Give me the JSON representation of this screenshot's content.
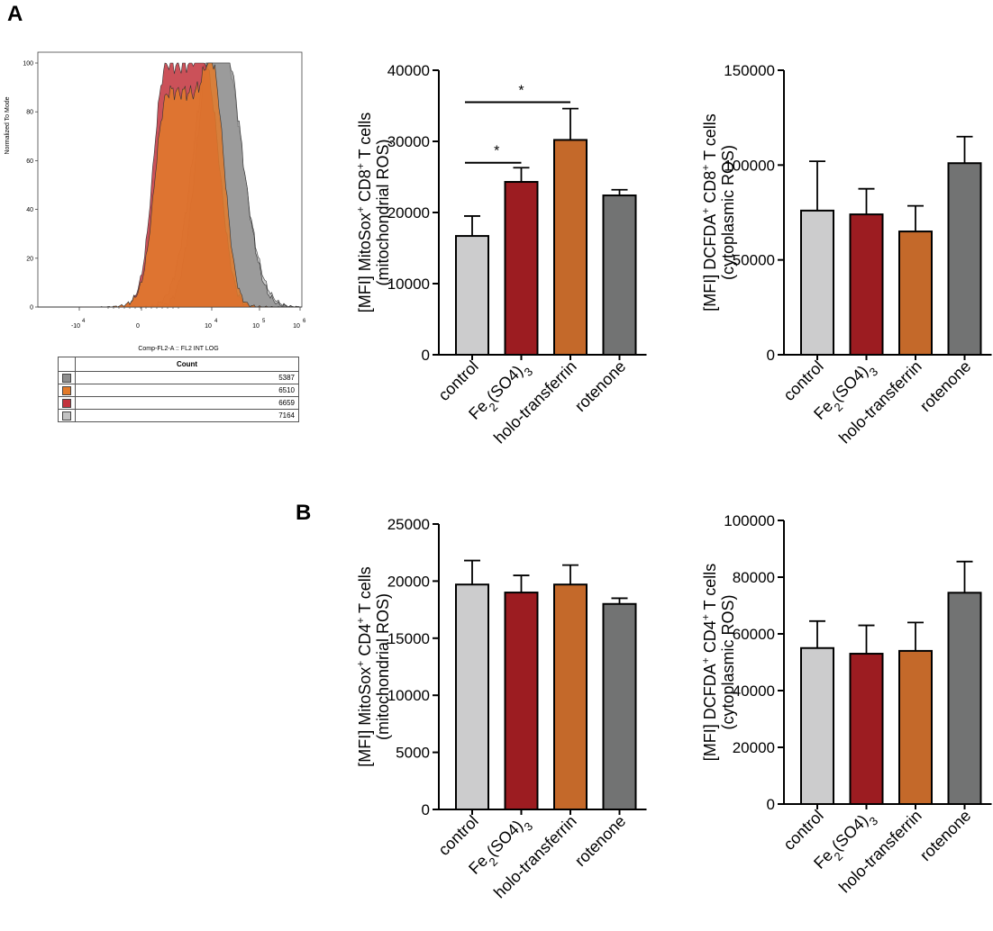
{
  "panels": {
    "a": "A",
    "b": "B"
  },
  "colors": {
    "control": "#cccccd",
    "fe": "#9c1c21",
    "holo": "#c4692a",
    "rotenone": "#727373",
    "hist_gray": "#8e8e8e",
    "hist_orange": "#e27a2a",
    "hist_red": "#c2323c",
    "hist_light": "#c2c2c2"
  },
  "histogram": {
    "ylabel": "Normalized To Mode",
    "xlabel": "Comp-FL2-A :: FL2 INT LOG",
    "yticks": [
      "0",
      "20",
      "40",
      "60",
      "80",
      "100"
    ],
    "xticks": [
      {
        "base": "-10",
        "exp": "4"
      },
      {
        "base": "0",
        "exp": ""
      },
      {
        "base": "10",
        "exp": "4"
      },
      {
        "base": "10",
        "exp": "5"
      },
      {
        "base": "10",
        "exp": "6"
      }
    ],
    "table_header": "Count",
    "rows": [
      {
        "color": "#8e8e8e",
        "count": "5387"
      },
      {
        "color": "#e27a2a",
        "count": "6510"
      },
      {
        "color": "#c2323c",
        "count": "6659"
      },
      {
        "color": "#c2c2c2",
        "count": "7164"
      }
    ]
  },
  "chart_data": [
    {
      "type": "bar",
      "title": "",
      "ylabel_line1": "[MFI] MitoSox+ CD8+ T cells",
      "ylabel_line2": "(mitochondrial ROS)",
      "ylabel_parts": [
        {
          "t": "[MFI] MitoSox"
        },
        {
          "t": "+",
          "sup": true
        },
        {
          "t": " CD8"
        },
        {
          "t": "+",
          "sup": true
        },
        {
          "t": " T cells"
        }
      ],
      "categories": [
        "control",
        "Fe2(SO4)3",
        "holo-transferrin",
        "rotenone"
      ],
      "values": [
        16700,
        24300,
        30200,
        22400
      ],
      "errors": [
        2800,
        2000,
        4400,
        800
      ],
      "ylim": [
        0,
        40000
      ],
      "yticks": [
        0,
        10000,
        20000,
        30000,
        40000
      ],
      "significance": [
        {
          "from": 0,
          "to": 1,
          "y": 27000,
          "label": "*"
        },
        {
          "from": 0,
          "to": 2,
          "y": 35500,
          "label": "*"
        }
      ]
    },
    {
      "type": "bar",
      "title": "",
      "ylabel_line1": "[MFI] DCFDA+ CD8+ T cells",
      "ylabel_line2": "(cytoplasmic ROS)",
      "ylabel_parts": [
        {
          "t": "[MFI] DCFDA"
        },
        {
          "t": "+",
          "sup": true
        },
        {
          "t": " CD8"
        },
        {
          "t": "+",
          "sup": true
        },
        {
          "t": " T cells"
        }
      ],
      "categories": [
        "control",
        "Fe2(SO4)3",
        "holo-transferrin",
        "rotenone"
      ],
      "values": [
        76000,
        74000,
        65000,
        101000
      ],
      "errors": [
        26000,
        13500,
        13500,
        14000
      ],
      "ylim": [
        0,
        150000
      ],
      "yticks": [
        0,
        50000,
        100000,
        150000
      ],
      "significance": []
    },
    {
      "type": "bar",
      "title": "",
      "ylabel_line1": "[MFI] MitoSox+ CD4+ T cells",
      "ylabel_line2": "(mitochondrial ROS)",
      "ylabel_parts": [
        {
          "t": "[MFI] MitoSox"
        },
        {
          "t": "+",
          "sup": true
        },
        {
          "t": " CD4"
        },
        {
          "t": "+",
          "sup": true
        },
        {
          "t": " T cells"
        }
      ],
      "categories": [
        "control",
        "Fe2(SO4)3",
        "holo-transferrin",
        "rotenone"
      ],
      "values": [
        19700,
        19000,
        19700,
        18000
      ],
      "errors": [
        2100,
        1500,
        1700,
        500
      ],
      "ylim": [
        0,
        25000
      ],
      "yticks": [
        0,
        5000,
        10000,
        15000,
        20000,
        25000
      ],
      "significance": []
    },
    {
      "type": "bar",
      "title": "",
      "ylabel_line1": "[MFI] DCFDA+ CD4+ T cells",
      "ylabel_line2": "(cytoplasmic ROS)",
      "ylabel_parts": [
        {
          "t": "[MFI] DCFDA"
        },
        {
          "t": "+",
          "sup": true
        },
        {
          "t": " CD4"
        },
        {
          "t": "+",
          "sup": true
        },
        {
          "t": " T cells"
        }
      ],
      "categories": [
        "control",
        "Fe2(SO4)3",
        "holo-transferrin",
        "rotenone"
      ],
      "values": [
        55000,
        53000,
        54000,
        74500
      ],
      "errors": [
        9500,
        10000,
        10000,
        11000
      ],
      "ylim": [
        0,
        100000
      ],
      "yticks": [
        0,
        20000,
        40000,
        60000,
        80000,
        100000
      ],
      "significance": []
    }
  ]
}
